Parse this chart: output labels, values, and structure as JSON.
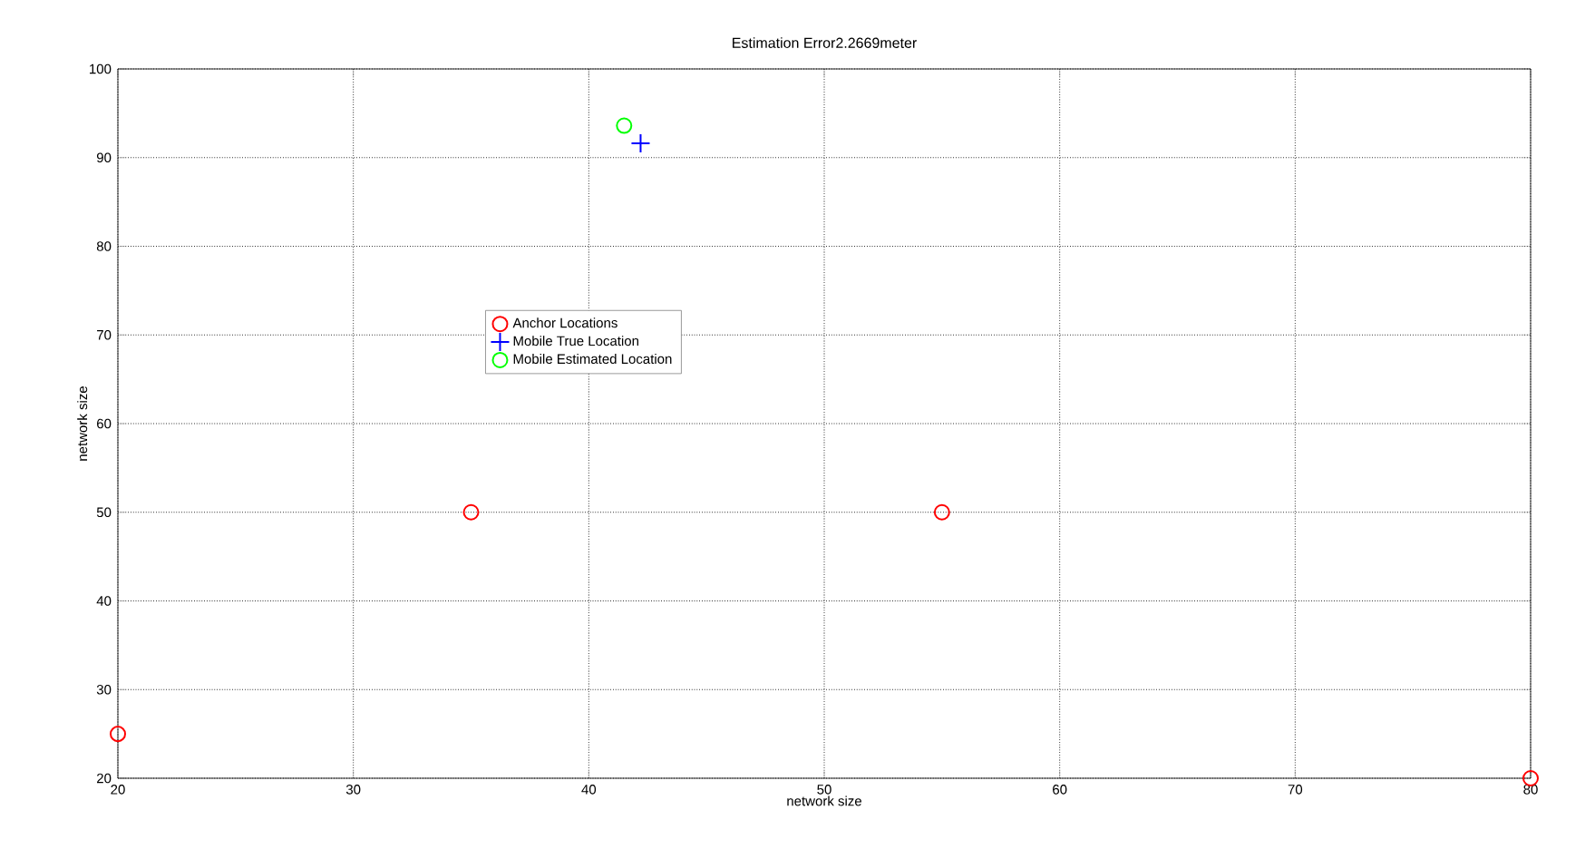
{
  "chart_data": {
    "type": "scatter",
    "title": "Estimation Error2.2669meter",
    "xlabel": "network size",
    "ylabel": "network size",
    "xlim": [
      20,
      80
    ],
    "xticks": [
      20,
      30,
      40,
      50,
      60,
      70,
      80
    ],
    "ylim": [
      20,
      100
    ],
    "yticks": [
      20,
      30,
      40,
      50,
      60,
      70,
      80,
      90,
      100
    ],
    "grid": true,
    "legend": "left",
    "series": [
      {
        "name": "Anchor Locations",
        "color": "#ff0000",
        "marker": "circle",
        "x": [
          20,
          35,
          55,
          80
        ],
        "values": [
          25,
          50,
          50,
          20
        ]
      },
      {
        "name": "Mobile True Location",
        "color": "#0000ff",
        "marker": "cross",
        "x": [
          42.2
        ],
        "values": [
          91.6
        ]
      },
      {
        "name": "Mobile Estimated Location",
        "color": "#00ff00",
        "marker": "circle",
        "x": [
          41.5
        ],
        "values": [
          93.6
        ]
      }
    ]
  }
}
